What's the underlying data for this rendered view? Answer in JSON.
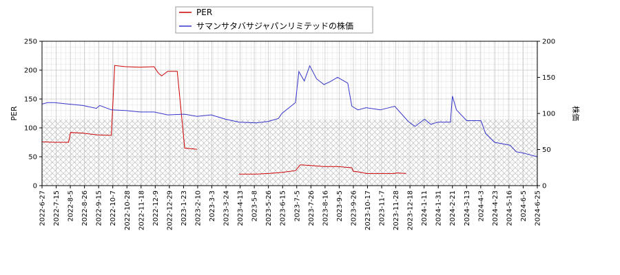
{
  "chart_data": {
    "type": "line",
    "legend": {
      "placement": "top-center",
      "entries": [
        {
          "name": "PER",
          "color": "#cc0000"
        },
        {
          "name": "サマンサタバサジャパンリミテッドの株価",
          "color": "#3333cc"
        }
      ]
    },
    "x_axis": {
      "type": "date",
      "range": [
        "2022-06-27",
        "2024-06-25"
      ],
      "tick_labels": [
        "2022-6-27",
        "2022-7-15",
        "2022-8-5",
        "2022-8-26",
        "2022-9-15",
        "2022-10-7",
        "2022-10-28",
        "2022-11-18",
        "2022-12-9",
        "2022-12-29",
        "2023-1-23",
        "2023-2-10",
        "2023-3-3",
        "2023-3-24",
        "2023-4-13",
        "2023-5-8",
        "2023-5-26",
        "2023-6-15",
        "2023-7-5",
        "2023-7-26",
        "2023-8-16",
        "2023-9-5",
        "2023-9-26",
        "2023-10-17",
        "2023-11-7",
        "2023-11-28",
        "2023-12-18",
        "2024-1-11",
        "2024-1-31",
        "2024-2-21",
        "2024-3-13",
        "2024-4-3",
        "2024-4-23",
        "2024-5-16",
        "2024-6-5",
        "2024-6-25"
      ]
    },
    "y_left": {
      "label": "PER",
      "range": [
        0,
        250
      ],
      "ticks": [
        "0",
        "50",
        "100",
        "150",
        "200",
        "250"
      ]
    },
    "y_right": {
      "label": "株価",
      "range": [
        0,
        200
      ],
      "ticks": [
        "0",
        "50",
        "100",
        "150",
        "200"
      ]
    },
    "grid": true,
    "series": [
      {
        "name": "PER",
        "axis": "left",
        "color": "#cc0000",
        "points": [
          [
            "2022-06-27",
            76
          ],
          [
            "2022-07-15",
            75
          ],
          [
            "2022-08-05",
            75
          ],
          [
            "2022-08-08",
            92
          ],
          [
            "2022-08-26",
            91
          ],
          [
            "2022-09-15",
            88
          ],
          [
            "2022-10-07",
            87
          ],
          [
            "2022-10-12",
            208
          ],
          [
            "2022-10-28",
            206
          ],
          [
            "2022-11-18",
            205
          ],
          [
            "2022-12-09",
            206
          ],
          [
            "2022-12-15",
            195
          ],
          [
            "2022-12-20",
            190
          ],
          [
            "2022-12-29",
            198
          ],
          [
            "2023-01-12",
            198
          ],
          [
            "2023-01-23",
            65
          ],
          [
            "2023-02-10",
            63
          ],
          null,
          [
            "2023-04-13",
            20
          ],
          [
            "2023-05-08",
            20
          ],
          [
            "2023-05-26",
            21
          ],
          [
            "2023-06-15",
            23
          ],
          [
            "2023-07-05",
            26
          ],
          [
            "2023-07-12",
            36
          ],
          [
            "2023-07-26",
            35
          ],
          [
            "2023-08-16",
            33
          ],
          [
            "2023-09-05",
            33
          ],
          [
            "2023-09-26",
            31
          ],
          [
            "2023-09-28",
            25
          ],
          [
            "2023-10-10",
            23
          ],
          [
            "2023-10-17",
            21
          ],
          [
            "2023-11-07",
            21
          ],
          [
            "2023-11-28",
            21
          ],
          [
            "2023-12-01",
            22
          ],
          [
            "2023-12-15",
            21
          ]
        ]
      },
      {
        "name": "サマンサタバサジャパンリミテッドの株価",
        "axis": "right",
        "color": "#3333cc",
        "points": [
          [
            "2022-06-27",
            113
          ],
          [
            "2022-07-05",
            115
          ],
          [
            "2022-07-15",
            115
          ],
          [
            "2022-08-05",
            113
          ],
          [
            "2022-08-26",
            111
          ],
          [
            "2022-09-15",
            107
          ],
          [
            "2022-09-20",
            111
          ],
          [
            "2022-10-07",
            105
          ],
          [
            "2022-10-28",
            104
          ],
          [
            "2022-11-18",
            102
          ],
          [
            "2022-12-09",
            102
          ],
          [
            "2022-12-29",
            98
          ],
          [
            "2023-01-23",
            99
          ],
          [
            "2023-02-10",
            96
          ],
          [
            "2023-03-03",
            98
          ],
          [
            "2023-03-24",
            92
          ],
          [
            "2023-04-13",
            88
          ],
          [
            "2023-05-08",
            87
          ],
          [
            "2023-05-26",
            89
          ],
          [
            "2023-06-10",
            93
          ],
          [
            "2023-06-15",
            100
          ],
          [
            "2023-07-05",
            115
          ],
          [
            "2023-07-10",
            158
          ],
          [
            "2023-07-18",
            145
          ],
          [
            "2023-07-26",
            166
          ],
          [
            "2023-08-05",
            148
          ],
          [
            "2023-08-16",
            140
          ],
          [
            "2023-08-25",
            144
          ],
          [
            "2023-09-05",
            150
          ],
          [
            "2023-09-20",
            142
          ],
          [
            "2023-09-26",
            110
          ],
          [
            "2023-10-05",
            105
          ],
          [
            "2023-10-17",
            108
          ],
          [
            "2023-11-07",
            105
          ],
          [
            "2023-11-28",
            110
          ],
          [
            "2023-12-18",
            89
          ],
          [
            "2023-12-28",
            82
          ],
          [
            "2024-01-11",
            92
          ],
          [
            "2024-01-20",
            85
          ],
          [
            "2024-01-31",
            88
          ],
          [
            "2024-02-18",
            88
          ],
          [
            "2024-02-21",
            124
          ],
          [
            "2024-02-27",
            105
          ],
          [
            "2024-03-13",
            90
          ],
          [
            "2024-04-03",
            90
          ],
          [
            "2024-04-10",
            72
          ],
          [
            "2024-04-23",
            60
          ],
          [
            "2024-05-16",
            56
          ],
          [
            "2024-05-25",
            47
          ],
          [
            "2024-06-05",
            45
          ],
          [
            "2024-06-25",
            40
          ]
        ]
      }
    ]
  }
}
